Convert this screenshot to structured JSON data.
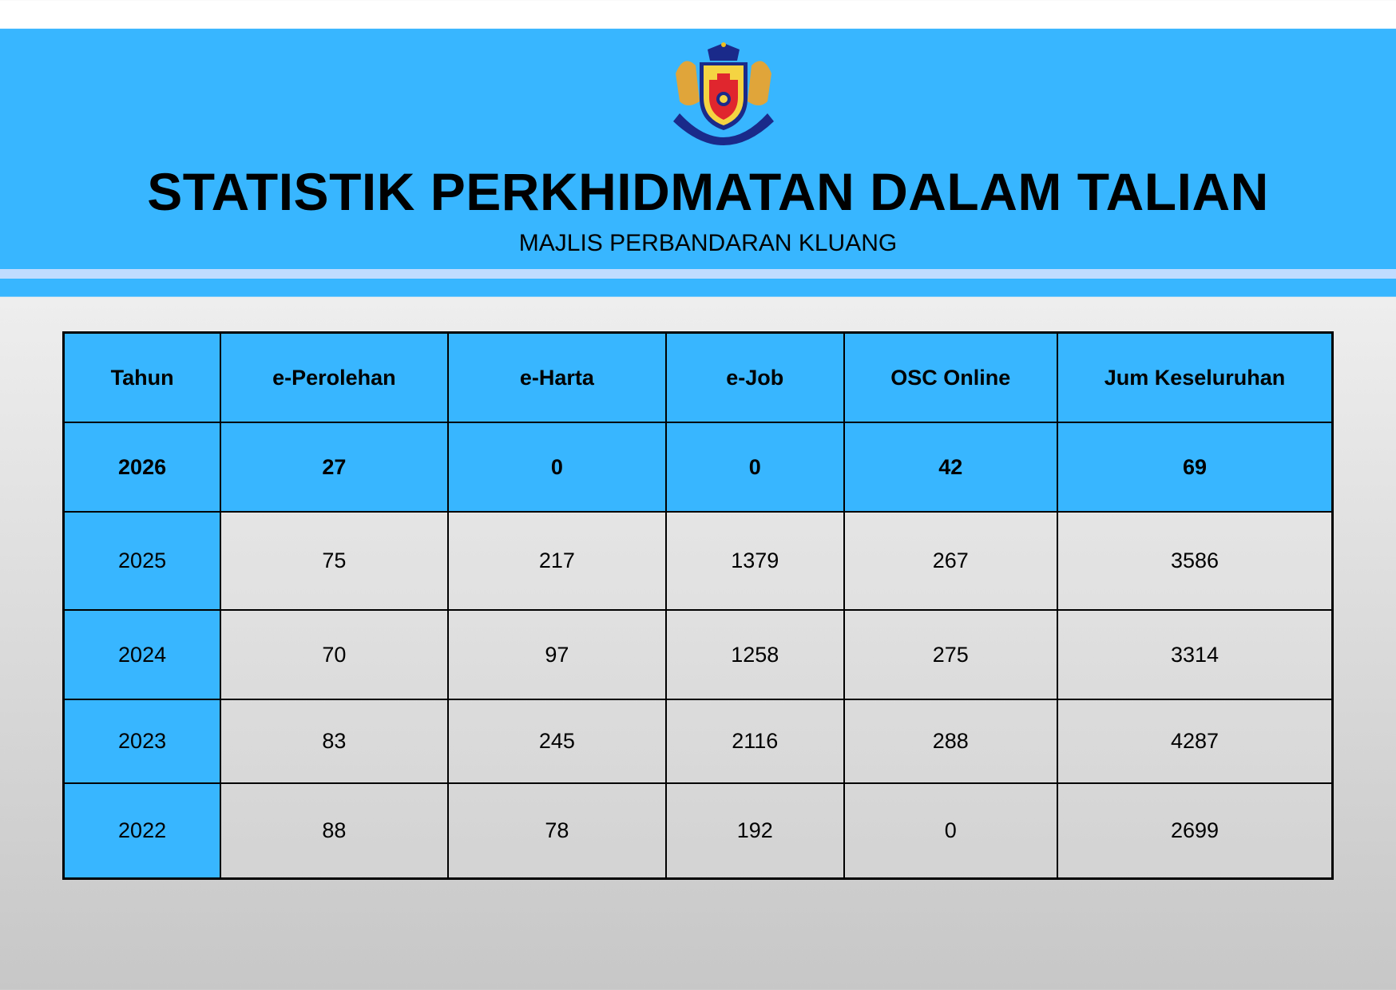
{
  "header": {
    "logo_text": "MAJLIS PERBANDARAN KLUANG",
    "title": "STATISTIK PERKHIDMATAN DALAM TALIAN",
    "subtitle": "MAJLIS PERBANDARAN KLUANG"
  },
  "colors": {
    "accent": "#38b6ff",
    "stripe": "#c0dcff"
  },
  "table": {
    "columns": [
      "Tahun",
      "e-Perolehan",
      "e-Harta",
      "e-Job",
      "OSC Online",
      "Jum Keseluruhan"
    ],
    "rows": [
      [
        "2026",
        "27",
        "0",
        "0",
        "42",
        "69"
      ],
      [
        "2025",
        "75",
        "217",
        "1379",
        "267",
        "3586"
      ],
      [
        "2024",
        "70",
        "97",
        "1258",
        "275",
        "3314"
      ],
      [
        "2023",
        "83",
        "245",
        "2116",
        "288",
        "4287"
      ],
      [
        "2022",
        "88",
        "78",
        "192",
        "0",
        "2699"
      ]
    ]
  }
}
